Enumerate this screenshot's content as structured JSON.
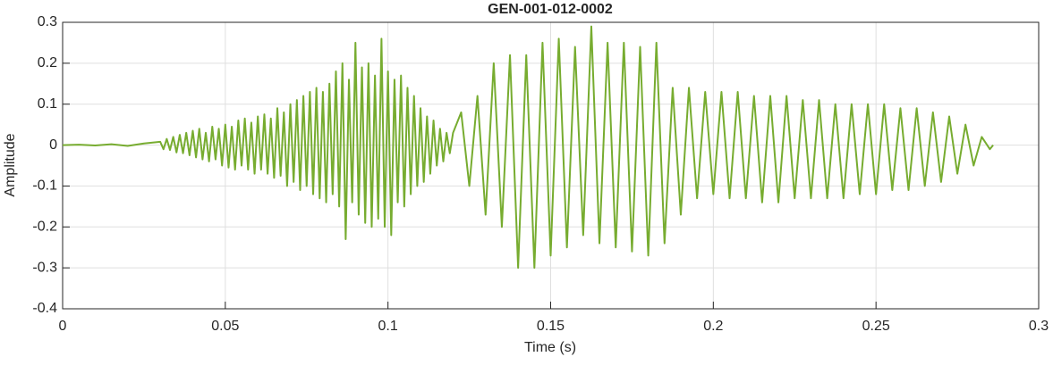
{
  "chart_data": {
    "type": "line",
    "title": "GEN-001-012-0002",
    "x_label": "Time (s)",
    "y_label": "Amplitude",
    "color": "#77ac30",
    "grid": true,
    "xlim": [
      0,
      0.3
    ],
    "xticks": [
      0,
      0.05,
      0.1,
      0.15,
      0.2,
      0.25,
      0.3
    ],
    "ylim": [
      -0.4,
      0.3
    ],
    "yticks": [
      -0.4,
      -0.3,
      -0.2,
      -0.1,
      0,
      0.1,
      0.2,
      0.3
    ],
    "x": [
      0,
      0.005,
      0.01,
      0.015,
      0.02,
      0.025,
      0.03,
      0.031,
      0.032,
      0.033,
      0.034,
      0.035,
      0.036,
      0.037,
      0.038,
      0.039,
      0.04,
      0.041,
      0.042,
      0.043,
      0.044,
      0.045,
      0.046,
      0.047,
      0.048,
      0.049,
      0.05,
      0.051,
      0.052,
      0.053,
      0.054,
      0.055,
      0.056,
      0.057,
      0.058,
      0.059,
      0.06,
      0.061,
      0.062,
      0.063,
      0.064,
      0.065,
      0.066,
      0.067,
      0.068,
      0.069,
      0.07,
      0.071,
      0.072,
      0.073,
      0.074,
      0.075,
      0.076,
      0.077,
      0.078,
      0.079,
      0.08,
      0.081,
      0.082,
      0.083,
      0.084,
      0.085,
      0.086,
      0.087,
      0.088,
      0.089,
      0.09,
      0.091,
      0.092,
      0.093,
      0.094,
      0.095,
      0.096,
      0.097,
      0.098,
      0.099,
      0.1,
      0.101,
      0.102,
      0.103,
      0.104,
      0.105,
      0.106,
      0.107,
      0.108,
      0.109,
      0.11,
      0.111,
      0.112,
      0.113,
      0.114,
      0.115,
      0.116,
      0.117,
      0.118,
      0.119,
      0.12,
      0.1225,
      0.125,
      0.1275,
      0.13,
      0.1325,
      0.135,
      0.1375,
      0.14,
      0.1425,
      0.145,
      0.1475,
      0.15,
      0.1525,
      0.155,
      0.1575,
      0.16,
      0.1625,
      0.165,
      0.1675,
      0.17,
      0.1725,
      0.175,
      0.1775,
      0.18,
      0.1825,
      0.185,
      0.1875,
      0.19,
      0.1925,
      0.195,
      0.1975,
      0.2,
      0.2025,
      0.205,
      0.2075,
      0.21,
      0.2125,
      0.215,
      0.2175,
      0.22,
      0.2225,
      0.225,
      0.2275,
      0.23,
      0.2325,
      0.235,
      0.2375,
      0.24,
      0.2425,
      0.245,
      0.2475,
      0.25,
      0.2525,
      0.255,
      0.2575,
      0.26,
      0.2625,
      0.265,
      0.2675,
      0.27,
      0.2725,
      0.275,
      0.2775,
      0.28,
      0.2825,
      0.285,
      0.286
    ],
    "values": [
      0,
      0.001,
      -0.001,
      0.002,
      -0.002,
      0.004,
      0.008,
      -0.01,
      0.015,
      -0.012,
      0.02,
      -0.018,
      0.025,
      -0.02,
      0.03,
      -0.025,
      0.035,
      -0.03,
      0.04,
      -0.035,
      0.03,
      -0.04,
      0.045,
      -0.035,
      0.04,
      -0.05,
      0.05,
      -0.055,
      0.045,
      -0.06,
      0.06,
      -0.05,
      0.065,
      -0.06,
      0.055,
      -0.07,
      0.07,
      -0.06,
      0.075,
      -0.07,
      0.065,
      -0.08,
      0.09,
      -0.075,
      0.08,
      -0.1,
      0.1,
      -0.09,
      0.11,
      -0.11,
      0.12,
      -0.1,
      0.13,
      -0.12,
      0.14,
      -0.13,
      0.13,
      -0.14,
      0.15,
      -0.12,
      0.18,
      -0.15,
      0.2,
      -0.23,
      0.16,
      -0.14,
      0.25,
      -0.17,
      0.19,
      -0.19,
      0.2,
      -0.2,
      0.17,
      -0.18,
      0.26,
      -0.2,
      0.18,
      -0.22,
      0.16,
      -0.14,
      0.17,
      -0.15,
      0.14,
      -0.12,
      0.12,
      -0.1,
      0.09,
      -0.09,
      0.07,
      -0.07,
      0.06,
      -0.05,
      0.04,
      -0.04,
      0.03,
      -0.02,
      0.03,
      0.08,
      -0.1,
      0.12,
      -0.17,
      0.2,
      -0.2,
      0.22,
      -0.3,
      0.22,
      -0.3,
      0.25,
      -0.27,
      0.26,
      -0.25,
      0.24,
      -0.22,
      0.29,
      -0.24,
      0.25,
      -0.25,
      0.25,
      -0.26,
      0.24,
      -0.27,
      0.25,
      -0.24,
      0.14,
      -0.17,
      0.14,
      -0.13,
      0.13,
      -0.12,
      0.13,
      -0.13,
      0.13,
      -0.13,
      0.12,
      -0.14,
      0.12,
      -0.14,
      0.12,
      -0.13,
      0.11,
      -0.13,
      0.11,
      -0.13,
      0.1,
      -0.13,
      0.1,
      -0.12,
      0.1,
      -0.12,
      0.1,
      -0.11,
      0.09,
      -0.11,
      0.09,
      -0.1,
      0.08,
      -0.09,
      0.07,
      -0.07,
      0.05,
      -0.05,
      0.02,
      -0.01,
      0.0
    ]
  }
}
